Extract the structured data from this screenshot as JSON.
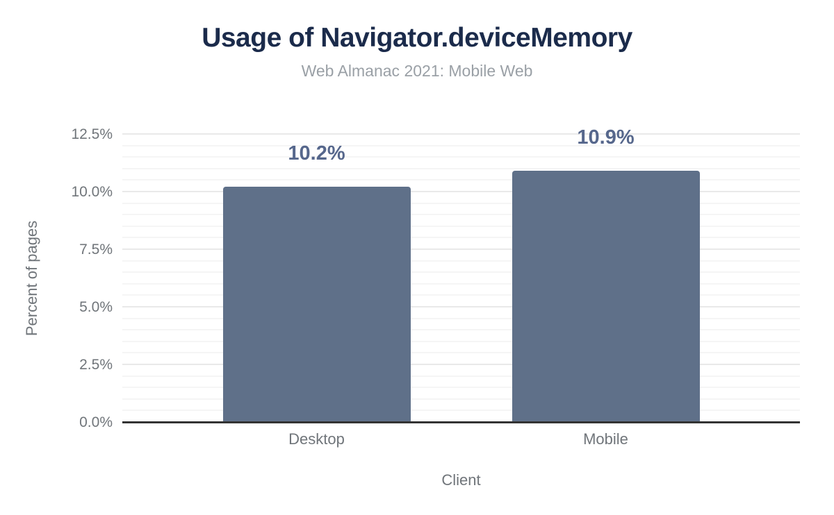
{
  "chart_data": {
    "type": "bar",
    "title": "Usage of Navigator.deviceMemory",
    "subtitle": "Web Almanac 2021: Mobile Web",
    "categories": [
      "Desktop",
      "Mobile"
    ],
    "values": [
      10.2,
      10.9
    ],
    "value_labels": [
      "10.2%",
      "10.9%"
    ],
    "xlabel": "Client",
    "ylabel": "Percent of pages",
    "ylim": [
      0,
      12.5
    ],
    "yticks": [
      0,
      2.5,
      5,
      7.5,
      10,
      12.5
    ],
    "ytick_labels": [
      "0.0%",
      "2.5%",
      "5.0%",
      "7.5%",
      "10.0%",
      "12.5%"
    ],
    "minor_grid_step": 0.5,
    "grid": true,
    "legend": "none",
    "colors": {
      "bar": "#5f7089",
      "value_label": "#56678c",
      "title": "#1b2b4b",
      "subtitle": "#9aa0a6",
      "tick_label": "#70757a",
      "axis_line": "#333333",
      "major_gridline": "#e9e9e9",
      "minor_gridline": "#f5f5f5",
      "background": "#ffffff"
    }
  }
}
